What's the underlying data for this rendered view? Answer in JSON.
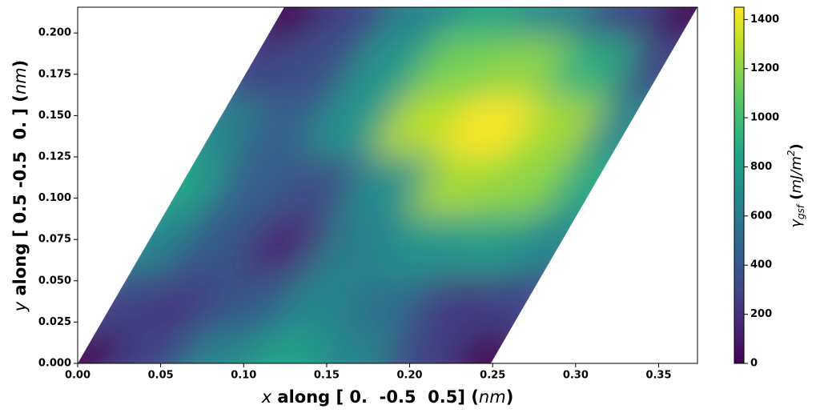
{
  "chart_data": {
    "type": "heatmap",
    "colormap": "viridis",
    "xlabel": [
      "x",
      " along [ 0.  -0.5  0.5] (",
      "nm",
      ")"
    ],
    "ylabel": [
      "y",
      " along [ 0.5 -0.5  0. ] (",
      "nm",
      ")"
    ],
    "colorbar_label": [
      "γ",
      "gsf",
      " (",
      "mJ/m",
      "2",
      ")"
    ],
    "domain": {
      "origin": [
        0,
        0
      ],
      "a": [
        0.2489,
        0
      ],
      "b": [
        0.12445,
        0.2156
      ]
    },
    "z": [
      [
        0,
        280,
        650,
        850,
        650,
        280,
        0
      ],
      [
        280,
        250,
        420,
        650,
        520,
        250,
        280
      ],
      [
        650,
        420,
        150,
        600,
        750,
        800,
        650
      ],
      [
        850,
        450,
        350,
        700,
        1250,
        1200,
        850
      ],
      [
        650,
        450,
        750,
        1300,
        1450,
        1250,
        650
      ],
      [
        280,
        350,
        750,
        1150,
        1200,
        900,
        280
      ],
      [
        0,
        280,
        650,
        850,
        650,
        280,
        0
      ]
    ],
    "xlim": [
      0,
      0.3734
    ],
    "ylim": [
      0,
      0.2156
    ],
    "xticks": [
      {
        "value": 0,
        "label": "0.00"
      },
      {
        "value": 0.05,
        "label": "0.05"
      },
      {
        "value": 0.1,
        "label": "0.10"
      },
      {
        "value": 0.15,
        "label": "0.15"
      },
      {
        "value": 0.2,
        "label": "0.20"
      },
      {
        "value": 0.25,
        "label": "0.25"
      },
      {
        "value": 0.3,
        "label": "0.30"
      },
      {
        "value": 0.35,
        "label": "0.35"
      }
    ],
    "yticks": [
      {
        "value": 0,
        "label": "0.000"
      },
      {
        "value": 0.025,
        "label": "0.025"
      },
      {
        "value": 0.05,
        "label": "0.050"
      },
      {
        "value": 0.075,
        "label": "0.075"
      },
      {
        "value": 0.1,
        "label": "0.100"
      },
      {
        "value": 0.125,
        "label": "0.125"
      },
      {
        "value": 0.15,
        "label": "0.150"
      },
      {
        "value": 0.175,
        "label": "0.175"
      },
      {
        "value": 0.2,
        "label": "0.200"
      }
    ],
    "clim": [
      0,
      1450
    ],
    "cticks": [
      0,
      200,
      400,
      600,
      800,
      1000,
      1200,
      1400
    ]
  }
}
